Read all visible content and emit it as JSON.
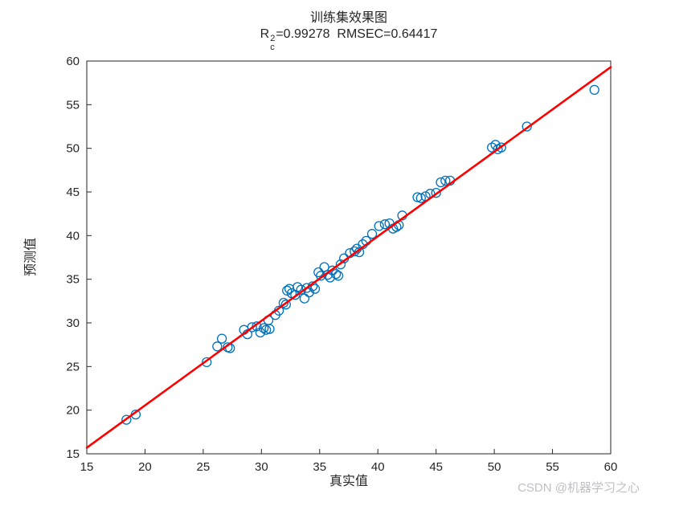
{
  "title": "训练集效果图",
  "subtitle": {
    "r": "R",
    "sup": "2",
    "sub": "c",
    "rest": "=0.99278  RMSEC=0.64417"
  },
  "watermark": "CSDN @机器学习之心",
  "chart_data": {
    "type": "scatter",
    "title": "训练集效果图",
    "subtitle": "R_c^2=0.99278  RMSEC=0.64417",
    "xlabel": "真实值",
    "ylabel": "预测值",
    "xlim": [
      15,
      60
    ],
    "ylim": [
      15,
      60
    ],
    "xticks": [
      15,
      20,
      25,
      30,
      35,
      40,
      45,
      50,
      55,
      60
    ],
    "yticks": [
      15,
      20,
      25,
      30,
      35,
      40,
      45,
      50,
      55,
      60
    ],
    "grid": false,
    "legend": "none",
    "marker_color": "#0072BD",
    "line_color": "#FF0000",
    "fit_line": {
      "x": [
        15,
        60
      ],
      "y": [
        15.7,
        59.3
      ]
    },
    "points": [
      [
        18.4,
        18.9
      ],
      [
        19.2,
        19.5
      ],
      [
        25.3,
        25.5
      ],
      [
        26.2,
        27.3
      ],
      [
        26.6,
        28.2
      ],
      [
        27.1,
        27.2
      ],
      [
        27.3,
        27.1
      ],
      [
        28.5,
        29.2
      ],
      [
        28.8,
        28.7
      ],
      [
        29.2,
        29.5
      ],
      [
        29.6,
        29.6
      ],
      [
        29.9,
        28.9
      ],
      [
        30.2,
        29.4
      ],
      [
        30.4,
        29.2
      ],
      [
        30.6,
        30.3
      ],
      [
        30.7,
        29.3
      ],
      [
        31.2,
        30.9
      ],
      [
        31.5,
        31.4
      ],
      [
        31.9,
        32.3
      ],
      [
        32.1,
        32.1
      ],
      [
        32.2,
        33.7
      ],
      [
        32.4,
        33.9
      ],
      [
        32.6,
        33.4
      ],
      [
        32.9,
        33.2
      ],
      [
        33.1,
        34.1
      ],
      [
        33.4,
        33.8
      ],
      [
        33.7,
        32.8
      ],
      [
        33.9,
        34.0
      ],
      [
        34.1,
        33.5
      ],
      [
        34.4,
        34.2
      ],
      [
        34.6,
        33.9
      ],
      [
        34.9,
        35.8
      ],
      [
        35.1,
        35.4
      ],
      [
        35.4,
        36.4
      ],
      [
        35.7,
        35.5
      ],
      [
        35.9,
        35.2
      ],
      [
        36.1,
        36.0
      ],
      [
        36.4,
        35.6
      ],
      [
        36.6,
        35.4
      ],
      [
        36.8,
        36.7
      ],
      [
        37.1,
        37.4
      ],
      [
        37.6,
        38.0
      ],
      [
        38.0,
        38.2
      ],
      [
        38.2,
        38.5
      ],
      [
        38.4,
        38.1
      ],
      [
        38.7,
        39.0
      ],
      [
        39.0,
        39.4
      ],
      [
        39.5,
        40.2
      ],
      [
        40.1,
        41.1
      ],
      [
        40.6,
        41.3
      ],
      [
        41.0,
        41.4
      ],
      [
        41.3,
        40.8
      ],
      [
        41.6,
        41.0
      ],
      [
        41.8,
        41.2
      ],
      [
        42.1,
        42.3
      ],
      [
        43.4,
        44.4
      ],
      [
        43.7,
        44.3
      ],
      [
        44.1,
        44.5
      ],
      [
        44.5,
        44.8
      ],
      [
        45.0,
        44.9
      ],
      [
        45.4,
        46.1
      ],
      [
        45.8,
        46.3
      ],
      [
        46.2,
        46.3
      ],
      [
        49.8,
        50.1
      ],
      [
        50.1,
        50.4
      ],
      [
        50.3,
        49.9
      ],
      [
        50.6,
        50.1
      ],
      [
        52.8,
        52.5
      ],
      [
        58.6,
        56.7
      ]
    ]
  }
}
